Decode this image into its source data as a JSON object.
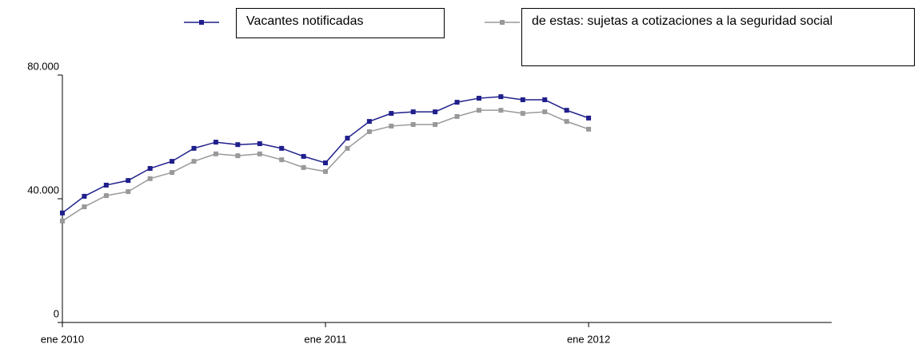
{
  "chart_data": {
    "type": "line",
    "categories": [
      "ene 2010",
      null,
      null,
      null,
      null,
      null,
      null,
      null,
      null,
      null,
      null,
      null,
      "ene 2011",
      null,
      null,
      null,
      null,
      null,
      null,
      null,
      null,
      null,
      null,
      null,
      "ene 2012"
    ],
    "series": [
      {
        "name": "Vacantes notificadas",
        "color": "#1f1f8c",
        "values": [
          35400,
          40800,
          44400,
          45900,
          49800,
          52100,
          56300,
          58300,
          57500,
          57800,
          56300,
          53700,
          51600,
          59600,
          65000,
          67600,
          68100,
          68100,
          71200,
          72500,
          73000,
          72000,
          72000,
          68600,
          66100
        ]
      },
      {
        "name": "de estas: sujetas a cotizaciones a la seguridad social",
        "color": "#999999",
        "values": [
          32800,
          37400,
          41000,
          42300,
          46500,
          48500,
          52100,
          54500,
          53900,
          54500,
          52600,
          50100,
          48800,
          56300,
          61700,
          63500,
          64000,
          64000,
          66600,
          68600,
          68600,
          67600,
          68100,
          65000,
          62500
        ]
      }
    ],
    "ylim": [
      0,
      80000
    ],
    "yticks": [
      0,
      {
        "value": 40000,
        "label": "40.000"
      },
      {
        "value": 80000,
        "label": "80.000"
      }
    ],
    "grid": false
  }
}
